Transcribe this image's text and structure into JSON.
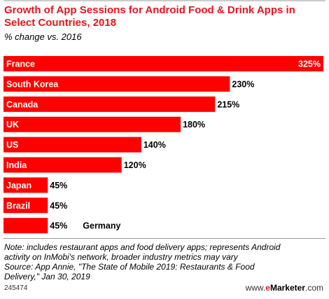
{
  "header": {
    "title": "Growth of App Sessions for Android Food & Drink Apps in Select Countries, 2018",
    "subtitle": "% change vs. 2016"
  },
  "chart_data": {
    "type": "bar",
    "orientation": "horizontal",
    "categories": [
      "France",
      "South Korea",
      "Canada",
      "UK",
      "US",
      "India",
      "Japan",
      "Brazil",
      "Germany"
    ],
    "values": [
      325,
      230,
      215,
      180,
      140,
      120,
      45,
      45,
      45
    ],
    "value_labels": [
      "325%",
      "230%",
      "215%",
      "180%",
      "140%",
      "120%",
      "45%",
      "45%",
      "45%"
    ],
    "title": "Growth of App Sessions for Android Food & Drink Apps in Select Countries, 2018",
    "subtitle": "% change vs. 2016",
    "xlim": [
      0,
      325
    ],
    "grid": false,
    "legend": "none",
    "bar_color": "#ff0000"
  },
  "footer": {
    "note_lines": [
      "Note: includes restaurant apps and food delivery apps; represents Android",
      "activity on InMobi's network, broader industry metrics may vary",
      "Source: App Annie, \"The State of Mobile 2019: Restaurants & Food",
      "Delivery,\" Jan 30, 2019"
    ],
    "chart_id": "245474",
    "brand_prefix": "www.",
    "brand_e": "e",
    "brand_name": "Marketer",
    "brand_suffix": ".com"
  }
}
